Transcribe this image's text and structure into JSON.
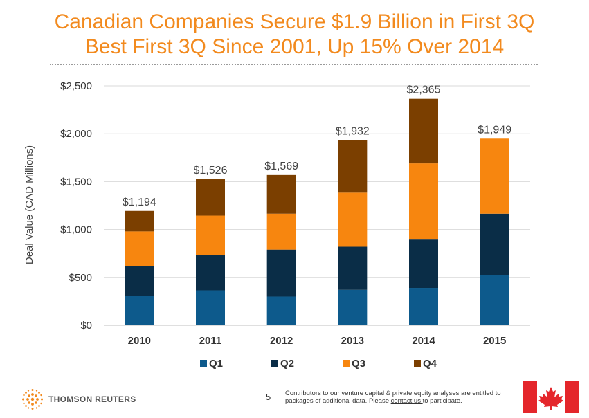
{
  "title": {
    "line1": "Canadian Companies Secure $1.9 Billion in First 3Q",
    "line2": "Best First 3Q Since 2001, Up 15% Over 2014"
  },
  "colors": {
    "title": "#f28a1e",
    "q1": "#0d5a8c",
    "q2": "#0a2d47",
    "q3": "#f7860f",
    "q4": "#7b3f00",
    "grid": "#d9d9d9"
  },
  "chart_data": {
    "type": "bar",
    "stacked": true,
    "categories": [
      "2010",
      "2011",
      "2012",
      "2013",
      "2014",
      "2015"
    ],
    "series": [
      {
        "name": "Q1",
        "values": [
          310,
          365,
          300,
          370,
          390,
          525
        ]
      },
      {
        "name": "Q2",
        "values": [
          305,
          370,
          490,
          450,
          505,
          640
        ]
      },
      {
        "name": "Q3",
        "values": [
          365,
          410,
          375,
          565,
          795,
          784
        ]
      },
      {
        "name": "Q4",
        "values": [
          214,
          381,
          404,
          547,
          675,
          0
        ]
      }
    ],
    "totals": [
      "$1,194",
      "$1,526",
      "$1,569",
      "$1,932",
      "$2,365",
      "$1,949"
    ],
    "ylabel": "Deal Value (CAD Millions)",
    "xlabel": "",
    "ylim": [
      0,
      2500
    ],
    "yticks": [
      0,
      500,
      1000,
      1500,
      2000,
      2500
    ],
    "ytick_labels": [
      "$0",
      "$500",
      "$1,000",
      "$1,500",
      "$2,000",
      "$2,500"
    ],
    "grid": true,
    "legend_position": "bottom"
  },
  "footer": {
    "logo_text": "THOMSON REUTERS",
    "page_number": "5",
    "note_before": "Contributors to our venture capital & private equity analyses are entitled to packages of additional data. Please ",
    "note_link": "contact us ",
    "note_after": "to participate."
  }
}
